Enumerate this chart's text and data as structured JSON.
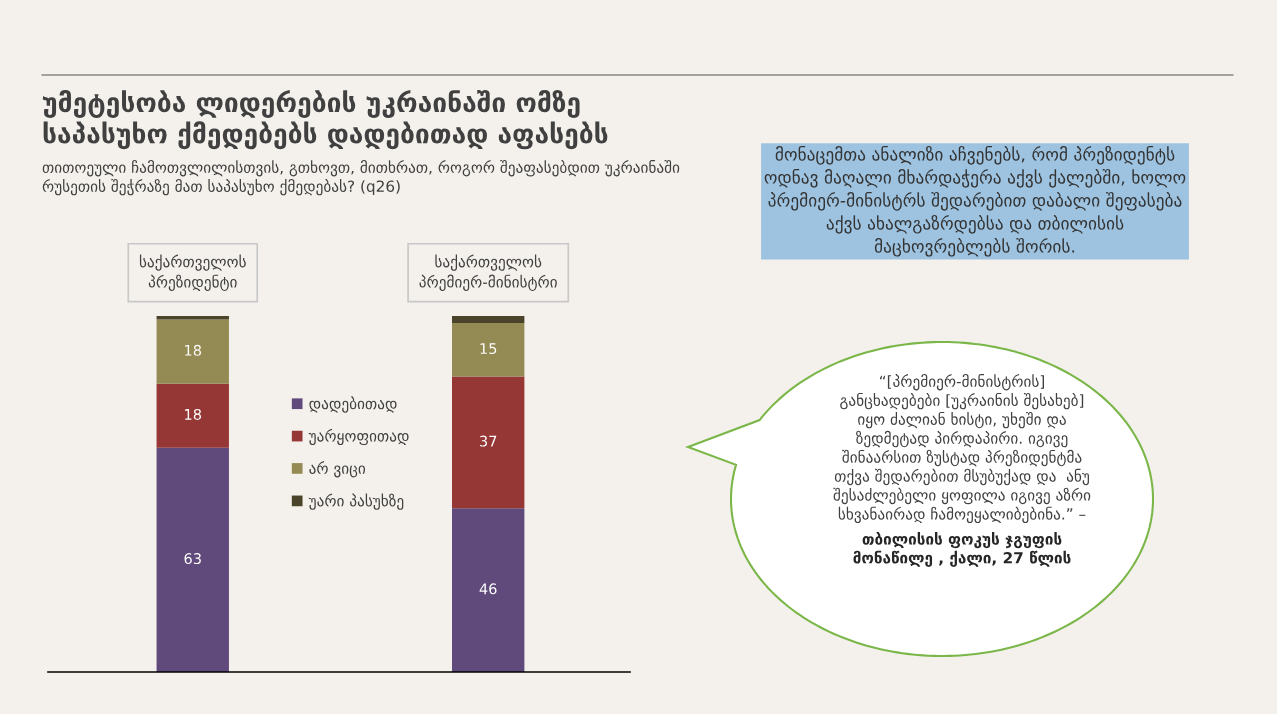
{
  "chart_data": {
    "type": "bar",
    "stacked": true,
    "title": "უმეტესობა ლიდერების უკრაინაში ომზე საპასუხო ქმედებებს დადებითად აფასებს",
    "subtitle": "თითოეული ჩამოთვლილისთვის, გთხოვთ, მითხრათ, როგორ შეაფასებდით უკრაინაში რუსეთის შეჭრაზე მათ საპასუხო ქმედებას? (q26)",
    "categories": [
      "საქართველოს პრეზიდენტი",
      "საქართველოს პრემიერ-მინისტრი"
    ],
    "series": [
      {
        "name": "დადებითად",
        "color": "#604a7b",
        "values": [
          63,
          46
        ],
        "value_labels": [
          "63",
          "46"
        ]
      },
      {
        "name": "უარყოფითად",
        "color": "#953735",
        "values": [
          18,
          37
        ],
        "value_labels": [
          "18",
          "37"
        ]
      },
      {
        "name": "არ ვიცი",
        "color": "#948a54",
        "values": [
          18,
          15
        ],
        "value_labels": [
          "18",
          "15"
        ]
      },
      {
        "name": "უარი პასუხზე",
        "color": "#4a452a",
        "values": [
          1,
          2
        ],
        "value_labels": [
          null,
          null
        ]
      }
    ],
    "legend": "center",
    "annotations": [
      "მონაცემთა ანალიზი აჩვენებს, რომ პრეზიდენტს ოდნავ მაღალი მხარდაჭერა აქვს ქალებში, ხოლო პრემიერ-მინისტრს შედარებით დაბალი შეფასება აქვს ახალგაზრდებსა და თბილისის მაცხოვრებლებს შორის.",
      "“[პრემიერ-მინისტრის] განცხადებები [უკრაინის შესახებ] იყო ძალიან ხისტი, უხეში და ზედმეტად პირდაპირი. იგივე შინაარსით ზუსტად პრეზიდენტმა თქვა შედარებით მსუბუქად და  ანუ შესაძლებელი ყოფილა იგივე აზრი სხვანაირად ჩამოეყალიბებინა.” –",
      "თბილისის ფოკუს ჯგუფის მონაწილე , ქალი, 27 წლის"
    ]
  }
}
